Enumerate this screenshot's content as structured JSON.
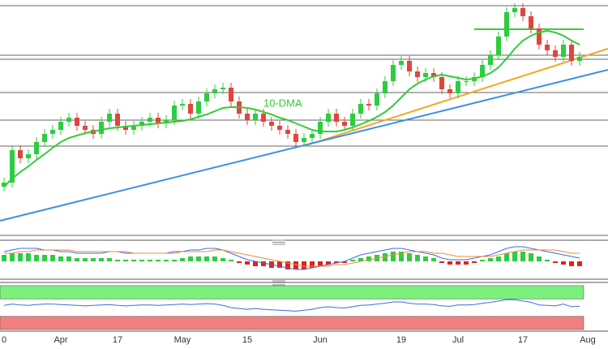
{
  "chart_data": [
    {
      "type": "candlestick",
      "categories": [
        "0",
        null,
        null,
        null,
        null,
        null,
        null,
        "Apr",
        null,
        null,
        null,
        null,
        null,
        null,
        "17",
        null,
        null,
        null,
        null,
        null,
        null,
        null,
        "May",
        null,
        null,
        null,
        null,
        null,
        null,
        null,
        "15",
        null,
        null,
        null,
        null,
        null,
        null,
        null,
        null,
        "Jun",
        null,
        null,
        null,
        null,
        null,
        null,
        null,
        null,
        null,
        "19",
        null,
        null,
        null,
        null,
        null,
        null,
        "Jul",
        null,
        null,
        null,
        null,
        null,
        null,
        null,
        "17",
        null,
        null,
        null,
        null,
        null,
        null,
        null,
        "Aug"
      ],
      "open": [
        60,
        65,
        105,
        95,
        100,
        115,
        125,
        130,
        140,
        145,
        135,
        130,
        125,
        140,
        150,
        135,
        130,
        135,
        140,
        145,
        138,
        142,
        160,
        162,
        150,
        165,
        175,
        180,
        182,
        165,
        150,
        142,
        150,
        140,
        135,
        130,
        125,
        115,
        120,
        125,
        140,
        150,
        140,
        135,
        150,
        162,
        160,
        175,
        190,
        210,
        215,
        202,
        195,
        200,
        195,
        180,
        175,
        190,
        190,
        195,
        210,
        222,
        245,
        275,
        280,
        270,
        255,
        235,
        228,
        220,
        235,
        215,
        null
      ],
      "high": [
        71,
        111,
        111,
        106,
        121,
        131,
        136,
        146,
        151,
        151,
        141,
        136,
        146,
        156,
        156,
        141,
        141,
        146,
        151,
        151,
        148,
        166,
        168,
        168,
        171,
        181,
        186,
        188,
        188,
        171,
        156,
        156,
        156,
        146,
        141,
        136,
        131,
        126,
        131,
        146,
        156,
        156,
        146,
        156,
        168,
        168,
        181,
        196,
        216,
        221,
        221,
        208,
        206,
        206,
        201,
        186,
        196,
        196,
        201,
        216,
        228,
        251,
        281,
        286,
        286,
        276,
        261,
        241,
        234,
        241,
        241,
        226,
        null
      ],
      "low": [
        54,
        59,
        89,
        89,
        94,
        109,
        119,
        124,
        134,
        129,
        124,
        119,
        119,
        134,
        129,
        124,
        124,
        129,
        134,
        132,
        132,
        136,
        154,
        144,
        144,
        159,
        169,
        174,
        159,
        144,
        136,
        136,
        134,
        129,
        124,
        119,
        109,
        109,
        114,
        119,
        134,
        134,
        129,
        129,
        144,
        154,
        154,
        169,
        184,
        204,
        196,
        189,
        189,
        189,
        174,
        169,
        169,
        184,
        184,
        189,
        204,
        216,
        239,
        269,
        264,
        249,
        229,
        222,
        214,
        214,
        209,
        209,
        null
      ],
      "close": [
        65,
        105,
        95,
        100,
        115,
        125,
        130,
        140,
        145,
        135,
        130,
        125,
        140,
        150,
        135,
        130,
        135,
        140,
        145,
        138,
        142,
        160,
        162,
        150,
        165,
        175,
        180,
        182,
        165,
        150,
        142,
        150,
        140,
        135,
        130,
        125,
        115,
        120,
        125,
        140,
        150,
        140,
        135,
        150,
        162,
        160,
        175,
        190,
        210,
        215,
        202,
        195,
        200,
        195,
        180,
        175,
        190,
        190,
        195,
        210,
        222,
        245,
        275,
        280,
        270,
        255,
        235,
        228,
        220,
        235,
        215,
        220,
        null
      ],
      "up_color": "#2ecc40",
      "down_color": "#e0463c",
      "ylim": [
        0,
        290
      ],
      "hlines": [
        283,
        222,
        217,
        176,
        142,
        110,
        0
      ],
      "lines": [
        {
          "color": "#3ec93e",
          "x": [
            58,
            71.5
          ],
          "values": [
            254,
            254
          ]
        },
        {
          "color": "#f5a623",
          "x": [
            37,
            74.5
          ],
          "values": [
            110,
            230
          ]
        },
        {
          "color": "#3a8ee6",
          "x": [
            -0.5,
            74.5
          ],
          "values": [
            18,
            204
          ]
        }
      ],
      "series": [
        {
          "name": "10-DMA",
          "color": "#33cc33",
          "values": [
            60,
            70,
            78,
            85,
            93,
            100,
            108,
            115,
            120,
            123,
            126,
            128,
            130,
            132,
            133,
            134,
            135,
            136,
            137,
            138,
            139,
            140,
            141,
            143,
            146,
            149,
            153,
            157,
            158,
            158,
            157,
            155,
            152,
            149,
            145,
            142,
            138,
            134,
            130,
            128,
            128,
            128,
            130,
            133,
            137,
            141,
            146,
            152,
            160,
            170,
            180,
            187,
            192,
            196,
            198,
            196,
            194,
            192,
            193,
            196,
            200,
            207,
            218,
            230,
            240,
            246,
            250,
            252,
            250,
            246,
            240,
            235,
            null
          ]
        }
      ]
    },
    {
      "type": "bar",
      "values": [
        4,
        5,
        5,
        5,
        4,
        4,
        4,
        3,
        3,
        2,
        2,
        2,
        2,
        2,
        1,
        1,
        1,
        1,
        1,
        1,
        1,
        1,
        2,
        3,
        3,
        3,
        3,
        2,
        1,
        -1,
        -2,
        -3,
        -3,
        -4,
        -4,
        -5,
        -5,
        -5,
        -4,
        -3,
        -2,
        -1,
        -1,
        1,
        2,
        3,
        4,
        5,
        6,
        6,
        5,
        4,
        3,
        2,
        -1,
        -2,
        -2,
        -2,
        -1,
        1,
        2,
        3,
        5,
        6,
        6,
        5,
        3,
        1,
        -1,
        -2,
        -3,
        -3,
        null
      ],
      "up_color": "#2ecc40",
      "down_color": "#e0231c",
      "ylim": [
        -10,
        10
      ],
      "series": [
        {
          "color": "#3a6ee6",
          "values": [
            6,
            7,
            8,
            8,
            8,
            7,
            7,
            6,
            6,
            5,
            5,
            5,
            5,
            6,
            6,
            5,
            5,
            5,
            5,
            5,
            5,
            6,
            6,
            7,
            7,
            8,
            8,
            7,
            5,
            3,
            1,
            0,
            -1,
            -2,
            -3,
            -4,
            -5,
            -5,
            -4,
            -3,
            -2,
            -1,
            0,
            2,
            4,
            5,
            6,
            7,
            8,
            8,
            7,
            6,
            5,
            4,
            2,
            1,
            1,
            1,
            2,
            3,
            4,
            6,
            8,
            9,
            9,
            8,
            7,
            6,
            5,
            4,
            3,
            2,
            null
          ]
        },
        {
          "color": "#f08a3a",
          "values": [
            5,
            5,
            6,
            6,
            7,
            7,
            7,
            7,
            7,
            6,
            6,
            6,
            6,
            6,
            6,
            6,
            5,
            5,
            5,
            5,
            5,
            5,
            6,
            6,
            6,
            6,
            7,
            7,
            6,
            5,
            4,
            3,
            2,
            1,
            0,
            -1,
            -2,
            -3,
            -3,
            -3,
            -3,
            -2,
            -2,
            -1,
            0,
            1,
            2,
            3,
            4,
            5,
            6,
            6,
            6,
            5,
            5,
            4,
            3,
            3,
            3,
            3,
            3,
            4,
            5,
            6,
            7,
            7,
            7,
            7,
            7,
            6,
            5,
            5,
            null
          ]
        }
      ]
    },
    {
      "type": "line",
      "ylim": [
        0,
        100
      ],
      "zones": [
        {
          "range": [
            70,
            100
          ],
          "color": "#7cf07c"
        },
        {
          "range": [
            0,
            30
          ],
          "color": "#f28080"
        }
      ],
      "series": [
        {
          "color": "#3a6ee6",
          "values": [
            55,
            58,
            56,
            55,
            57,
            58,
            58,
            57,
            56,
            55,
            54,
            55,
            56,
            57,
            55,
            54,
            55,
            56,
            56,
            55,
            56,
            57,
            58,
            57,
            58,
            59,
            58,
            55,
            50,
            48,
            46,
            48,
            46,
            45,
            44,
            43,
            42,
            44,
            46,
            50,
            52,
            50,
            49,
            52,
            55,
            56,
            58,
            60,
            63,
            63,
            60,
            58,
            58,
            57,
            54,
            53,
            56,
            56,
            57,
            60,
            62,
            65,
            68,
            68,
            65,
            62,
            56,
            55,
            54,
            58,
            52,
            53,
            null
          ]
        }
      ]
    }
  ]
}
